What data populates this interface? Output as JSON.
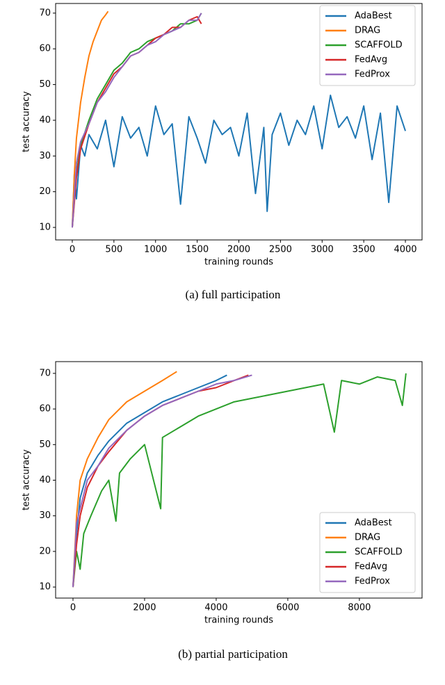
{
  "chart_data": [
    {
      "type": "line",
      "caption": "(a) full participation",
      "xlabel": "training rounds",
      "ylabel": "test accuracy",
      "xlim": [
        -200,
        4200
      ],
      "ylim": [
        6.5,
        72.7
      ],
      "xticks": [
        0,
        500,
        1000,
        1500,
        2000,
        2500,
        3000,
        3500,
        4000
      ],
      "yticks": [
        10,
        20,
        30,
        40,
        50,
        60,
        70
      ],
      "legend": "upper right",
      "series": [
        {
          "name": "AdaBest",
          "color": "#1f77b4",
          "x": [
            0,
            25,
            50,
            100,
            150,
            200,
            300,
            400,
            500,
            600,
            700,
            800,
            900,
            1000,
            1100,
            1200,
            1300,
            1400,
            1500,
            1600,
            1700,
            1800,
            1900,
            2000,
            2100,
            2200,
            2300,
            2340,
            2400,
            2500,
            2600,
            2700,
            2800,
            2900,
            3000,
            3100,
            3200,
            3300,
            3400,
            3500,
            3600,
            3700,
            3800,
            3900,
            4000
          ],
          "values": [
            10,
            25,
            18,
            33,
            30,
            36,
            32,
            40,
            27,
            41,
            35,
            38,
            30,
            44,
            36,
            39,
            16.5,
            41,
            35,
            28,
            40,
            36,
            38,
            30,
            42,
            19.5,
            38,
            14.5,
            36,
            42,
            33,
            40,
            36,
            44,
            32,
            47,
            38,
            41,
            35,
            44,
            29,
            42,
            17,
            44,
            37
          ]
        },
        {
          "name": "DRAG",
          "color": "#ff7f0e",
          "x": [
            0,
            25,
            50,
            100,
            150,
            200,
            250,
            300,
            350,
            400,
            430
          ],
          "values": [
            10,
            25,
            35,
            45,
            52,
            58,
            62,
            65,
            68,
            69.5,
            70.5
          ]
        },
        {
          "name": "SCAFFOLD",
          "color": "#2ca02c",
          "x": [
            0,
            50,
            100,
            200,
            300,
            400,
            500,
            600,
            700,
            800,
            900,
            1000,
            1100,
            1200,
            1300,
            1400,
            1500,
            1550
          ],
          "values": [
            10,
            25,
            33,
            40,
            46,
            50,
            54,
            56,
            59,
            60,
            62,
            63,
            64,
            65,
            67,
            67,
            68,
            70
          ]
        },
        {
          "name": "FedAvg",
          "color": "#d62728",
          "x": [
            0,
            50,
            100,
            200,
            300,
            400,
            500,
            600,
            700,
            800,
            900,
            1000,
            1100,
            1200,
            1300,
            1400,
            1500,
            1550
          ],
          "values": [
            10,
            24,
            32,
            39,
            45,
            49,
            53,
            55,
            58,
            59,
            61,
            63,
            64,
            66,
            66,
            68,
            69,
            67
          ]
        },
        {
          "name": "FedProx",
          "color": "#9467bd",
          "x": [
            0,
            50,
            100,
            200,
            300,
            400,
            500,
            600,
            700,
            800,
            900,
            1000,
            1100,
            1200,
            1300,
            1400,
            1500,
            1550
          ],
          "values": [
            10,
            28,
            34,
            39,
            45,
            48,
            52,
            55,
            58,
            59,
            61,
            62,
            64,
            65,
            66,
            68,
            68,
            70
          ]
        }
      ]
    },
    {
      "type": "line",
      "caption": "(b) partial participation",
      "xlabel": "training rounds",
      "ylabel": "test accuracy",
      "xlim": [
        -485,
        9750
      ],
      "ylim": [
        6.9,
        73.3
      ],
      "xticks": [
        0,
        2000,
        4000,
        6000,
        8000
      ],
      "yticks": [
        10,
        20,
        30,
        40,
        50,
        60,
        70
      ],
      "legend": "lower right",
      "series": [
        {
          "name": "AdaBest",
          "color": "#1f77b4",
          "x": [
            0,
            100,
            200,
            400,
            700,
            1000,
            1500,
            2000,
            2500,
            3000,
            3500,
            4000,
            4300
          ],
          "values": [
            10,
            25,
            35,
            42,
            47,
            51,
            56,
            59,
            62,
            64,
            66,
            68,
            69.5
          ]
        },
        {
          "name": "DRAG",
          "color": "#ff7f0e",
          "x": [
            0,
            100,
            200,
            400,
            700,
            1000,
            1500,
            2000,
            2500,
            2900
          ],
          "values": [
            10,
            30,
            40,
            46,
            52,
            57,
            62,
            65,
            68,
            70.5
          ]
        },
        {
          "name": "SCAFFOLD",
          "color": "#2ca02c",
          "x": [
            0,
            100,
            200,
            300,
            500,
            800,
            1000,
            1200,
            1300,
            1600,
            2000,
            2450,
            2500,
            3000,
            3500,
            4000,
            4500,
            5000,
            5500,
            6000,
            6500,
            7000,
            7300,
            7500,
            8000,
            8500,
            9000,
            9200,
            9300
          ],
          "values": [
            10,
            20,
            15,
            25,
            30,
            37,
            40,
            28.5,
            42,
            46,
            50,
            32,
            52,
            55,
            58,
            60,
            62,
            63,
            64,
            65,
            66,
            67,
            53.5,
            68,
            67,
            69,
            68,
            61,
            70
          ]
        },
        {
          "name": "FedAvg",
          "color": "#d62728",
          "x": [
            0,
            100,
            200,
            400,
            700,
            1000,
            1500,
            2000,
            2500,
            3000,
            3500,
            4000,
            4500,
            4900
          ],
          "values": [
            10,
            22,
            30,
            38,
            44,
            48,
            54,
            58,
            61,
            63,
            65,
            66,
            68,
            69.5
          ]
        },
        {
          "name": "FedProx",
          "color": "#9467bd",
          "x": [
            0,
            100,
            200,
            400,
            700,
            1000,
            1500,
            2000,
            2500,
            3000,
            3500,
            4000,
            4500,
            5000
          ],
          "values": [
            10,
            28,
            32,
            40,
            44,
            49,
            54,
            58,
            61,
            63,
            65,
            67,
            68,
            69.5
          ]
        }
      ]
    }
  ]
}
